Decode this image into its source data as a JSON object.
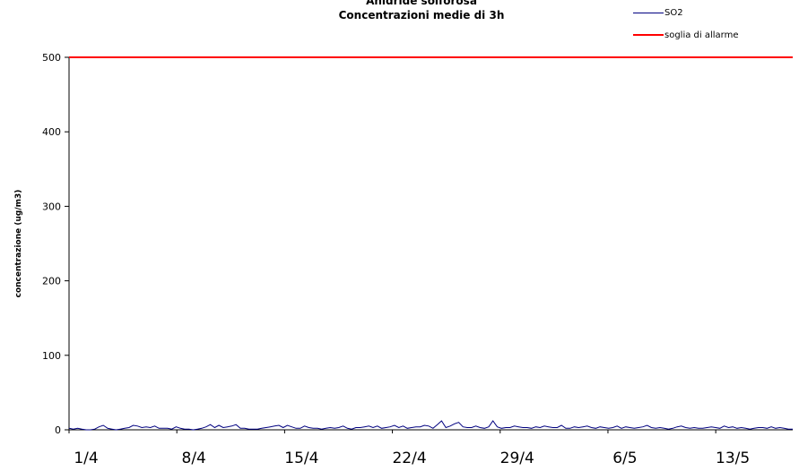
{
  "chart_data": {
    "type": "line",
    "title": "Anidride solforosa",
    "subtitle": "Concentrazioni medie di 3h",
    "ylabel": "concentrazione (ug/m3)",
    "xlabel": "",
    "ylim": [
      0,
      500
    ],
    "yticks": [
      0,
      100,
      200,
      300,
      400,
      500
    ],
    "x_tick_labels": [
      "1/4",
      "8/4",
      "15/4",
      "22/4",
      "29/4",
      "6/5",
      "13/5"
    ],
    "x_range_days": 47,
    "grid": false,
    "legend_position": "top-right",
    "series": [
      {
        "name": "SO2",
        "color": "#000080",
        "day_values": [
          2,
          1,
          2,
          1,
          0,
          0,
          1,
          4,
          6,
          2,
          1,
          0,
          1,
          2,
          3,
          6,
          5,
          3,
          4,
          3,
          5,
          2,
          2,
          2,
          1,
          4,
          2,
          1,
          1,
          0,
          1,
          2,
          4,
          7,
          3,
          6,
          3,
          4,
          5,
          7,
          2,
          2,
          1,
          1,
          1,
          2,
          3,
          4,
          5,
          6,
          3,
          6,
          4,
          2,
          2,
          5,
          3,
          2,
          2,
          1,
          2,
          3,
          2,
          3,
          5,
          2,
          1,
          3,
          3,
          4,
          5,
          3,
          5,
          2,
          3,
          4,
          6,
          3,
          5,
          2,
          3,
          4,
          4,
          6,
          5,
          2,
          7,
          12,
          3,
          5,
          8,
          10,
          4,
          3,
          3,
          5,
          3,
          2,
          4,
          12,
          4,
          2,
          3,
          3,
          5,
          4,
          3,
          3,
          2,
          4,
          3,
          5,
          4,
          3,
          3,
          6,
          2,
          2,
          4,
          3,
          4,
          5,
          3,
          2,
          4,
          3,
          2,
          3,
          5,
          2,
          4,
          3,
          2,
          3,
          4,
          6,
          3,
          2,
          3,
          2,
          1,
          2,
          4,
          5,
          3,
          2,
          3,
          2,
          2,
          3,
          4,
          3,
          2,
          5,
          3,
          4,
          2,
          3,
          2,
          1,
          2,
          3,
          3,
          2,
          4,
          2,
          3,
          2,
          1,
          1
        ]
      },
      {
        "name": "soglia di allarme",
        "color": "#ff0000",
        "constant": 500
      }
    ]
  }
}
